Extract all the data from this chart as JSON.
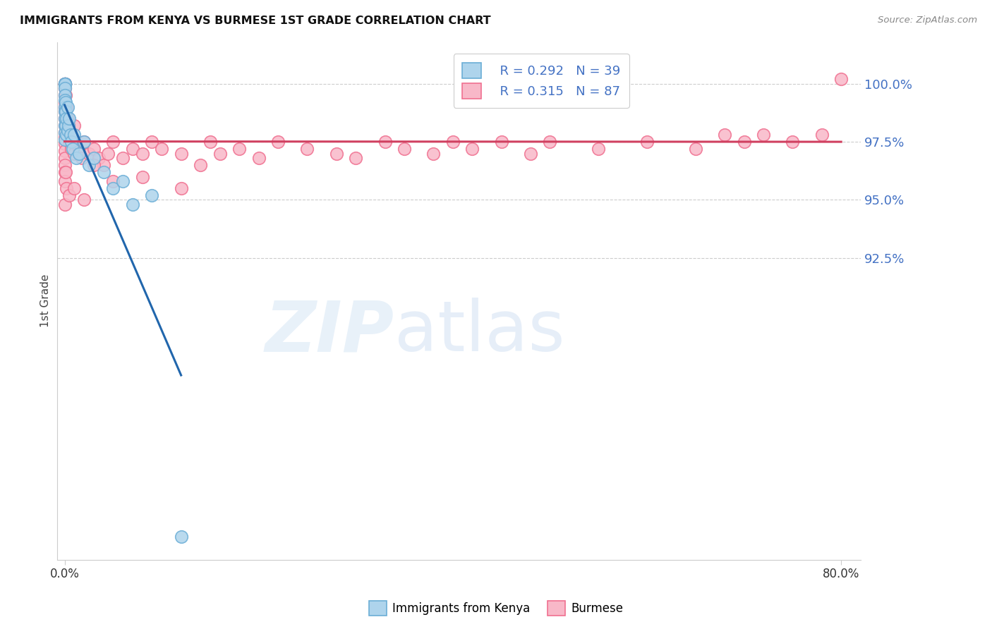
{
  "title": "IMMIGRANTS FROM KENYA VS BURMESE 1ST GRADE CORRELATION CHART",
  "source": "Source: ZipAtlas.com",
  "ylabel": "1st Grade",
  "ytick_values": [
    100.0,
    97.5,
    95.0,
    92.5
  ],
  "ymin": 79.5,
  "ymax": 101.8,
  "xmin": -0.8,
  "xmax": 82.0,
  "legend_kenya_R": "0.292",
  "legend_kenya_N": "39",
  "legend_burmese_R": "0.315",
  "legend_burmese_N": "87",
  "kenya_color": "#6baed6",
  "kenya_face": "#aed4ec",
  "burmese_color": "#f07090",
  "burmese_face": "#f8b8c8",
  "trendline_kenya_color": "#2166ac",
  "trendline_burmese_color": "#d04060",
  "kenya_x": [
    0.0,
    0.0,
    0.0,
    0.0,
    0.0,
    0.0,
    0.0,
    0.0,
    0.0,
    0.0,
    0.0,
    0.0,
    0.0,
    0.0,
    0.0,
    0.1,
    0.1,
    0.1,
    0.2,
    0.2,
    0.3,
    0.3,
    0.4,
    0.5,
    0.6,
    0.7,
    0.8,
    1.0,
    1.2,
    1.5,
    2.0,
    2.5,
    3.0,
    4.0,
    5.0,
    6.0,
    7.0,
    9.0,
    12.0
  ],
  "kenya_y": [
    100.0,
    100.0,
    100.0,
    100.0,
    100.0,
    100.0,
    99.8,
    99.5,
    99.3,
    99.0,
    98.8,
    98.5,
    98.2,
    97.9,
    97.6,
    99.2,
    98.8,
    98.2,
    98.5,
    97.8,
    99.0,
    98.0,
    98.2,
    98.5,
    97.8,
    97.5,
    97.2,
    97.8,
    96.8,
    97.0,
    97.5,
    96.5,
    96.8,
    96.2,
    95.5,
    95.8,
    94.8,
    95.2,
    80.5
  ],
  "burmese_x": [
    0.0,
    0.0,
    0.0,
    0.0,
    0.0,
    0.0,
    0.0,
    0.0,
    0.0,
    0.0,
    0.0,
    0.0,
    0.0,
    0.0,
    0.0,
    0.0,
    0.0,
    0.0,
    0.0,
    0.0,
    0.1,
    0.1,
    0.2,
    0.2,
    0.3,
    0.3,
    0.4,
    0.5,
    0.5,
    0.6,
    0.7,
    0.8,
    1.0,
    1.0,
    1.2,
    1.5,
    1.8,
    2.0,
    2.5,
    3.0,
    3.5,
    4.0,
    4.5,
    5.0,
    6.0,
    7.0,
    8.0,
    9.0,
    10.0,
    12.0,
    14.0,
    15.0,
    16.0,
    18.0,
    20.0,
    22.0,
    25.0,
    28.0,
    30.0,
    33.0,
    35.0,
    38.0,
    40.0,
    42.0,
    45.0,
    48.0,
    50.0,
    55.0,
    60.0,
    65.0,
    68.0,
    70.0,
    72.0,
    75.0,
    78.0,
    80.0,
    0.0,
    0.0,
    0.1,
    0.2,
    0.5,
    1.0,
    2.0,
    3.0,
    5.0,
    8.0,
    12.0
  ],
  "burmese_y": [
    100.0,
    100.0,
    100.0,
    100.0,
    100.0,
    100.0,
    99.8,
    99.5,
    99.2,
    99.0,
    98.8,
    98.5,
    98.2,
    97.9,
    97.7,
    97.4,
    97.1,
    96.8,
    96.5,
    96.2,
    99.5,
    98.8,
    99.0,
    98.2,
    98.5,
    97.8,
    98.2,
    97.5,
    98.0,
    97.8,
    97.2,
    97.5,
    97.0,
    98.2,
    97.5,
    97.2,
    96.8,
    97.5,
    97.0,
    97.2,
    96.8,
    96.5,
    97.0,
    97.5,
    96.8,
    97.2,
    97.0,
    97.5,
    97.2,
    97.0,
    96.5,
    97.5,
    97.0,
    97.2,
    96.8,
    97.5,
    97.2,
    97.0,
    96.8,
    97.5,
    97.2,
    97.0,
    97.5,
    97.2,
    97.5,
    97.0,
    97.5,
    97.2,
    97.5,
    97.2,
    97.8,
    97.5,
    97.8,
    97.5,
    97.8,
    100.2,
    95.8,
    94.8,
    96.2,
    95.5,
    95.2,
    95.5,
    95.0,
    96.5,
    95.8,
    96.0,
    95.5
  ]
}
